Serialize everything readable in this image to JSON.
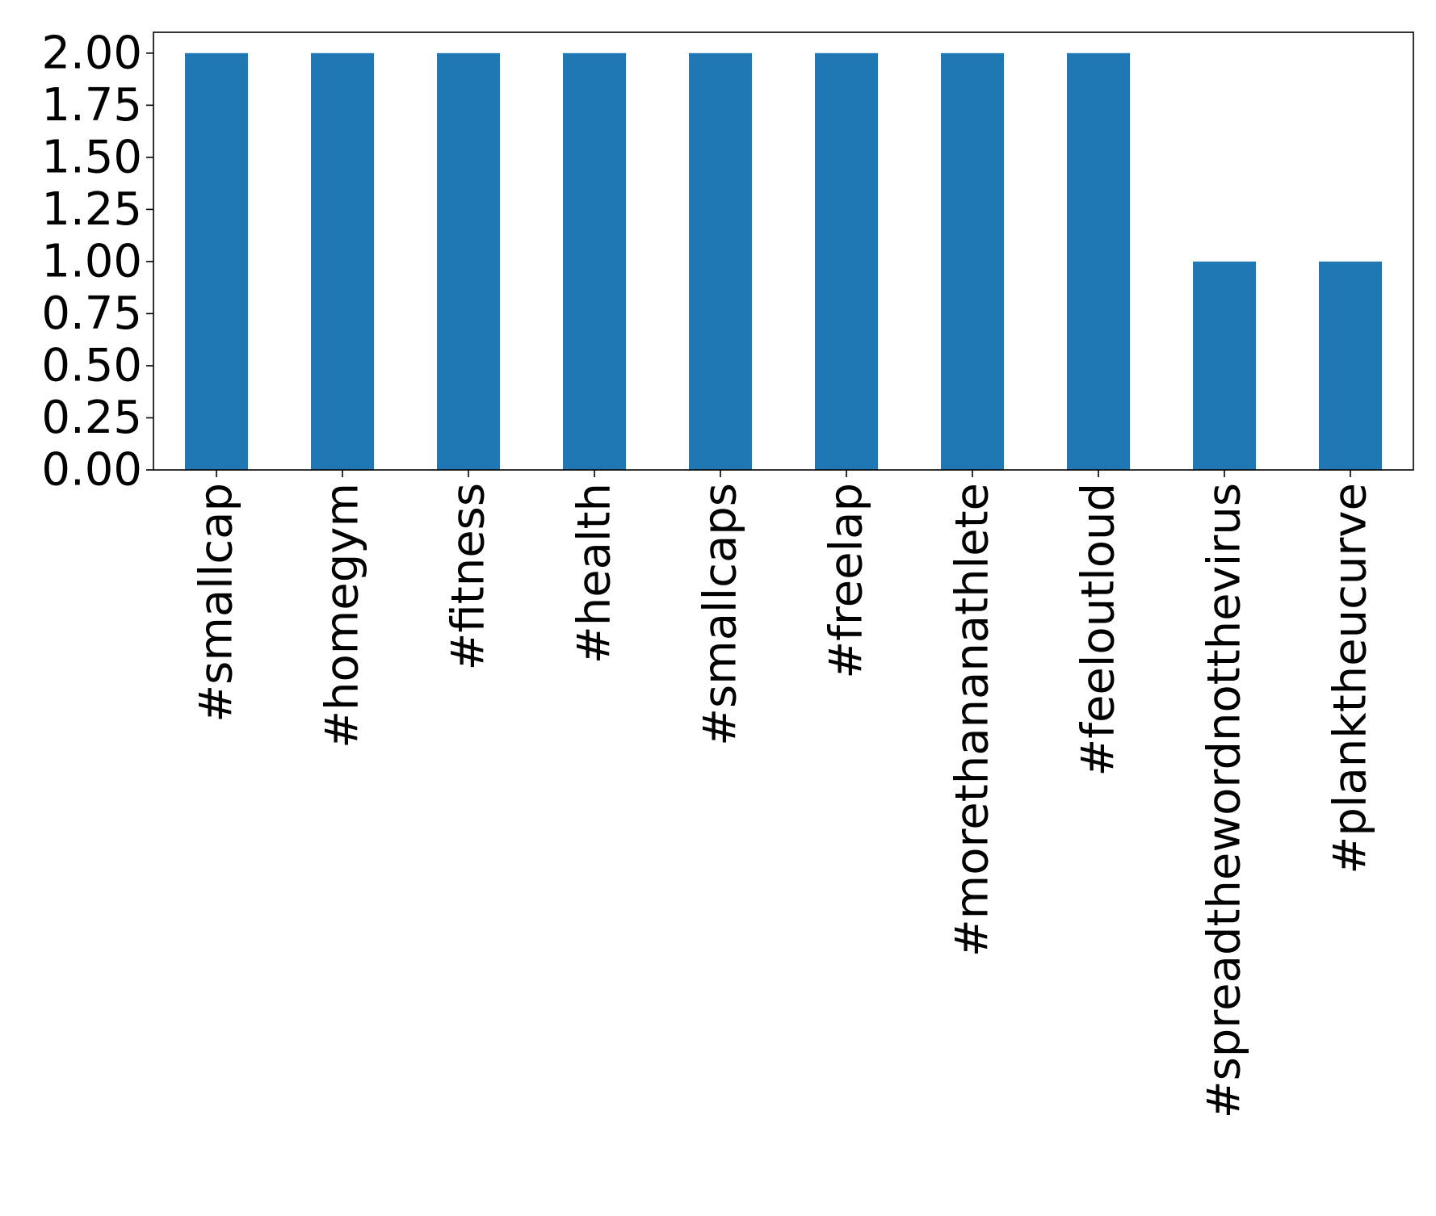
{
  "chart_data": {
    "type": "bar",
    "title": "",
    "xlabel": "",
    "ylabel": "",
    "categories": [
      "#smallcap",
      "#homegym",
      "#fitness",
      "#health",
      "#smallcaps",
      "#freelap",
      "#morethananathlete",
      "#feeloutloud",
      "#spreadthewordnotthevirus",
      "#planktheucurve"
    ],
    "values": [
      2,
      2,
      2,
      2,
      2,
      2,
      2,
      2,
      1,
      1
    ],
    "ylim": [
      0,
      2.1
    ],
    "yticks": [
      "0.00",
      "0.25",
      "0.50",
      "0.75",
      "1.00",
      "1.25",
      "1.50",
      "1.75",
      "2.00"
    ],
    "grid": false,
    "legend": "none",
    "bar_color": "#1f77b4"
  }
}
